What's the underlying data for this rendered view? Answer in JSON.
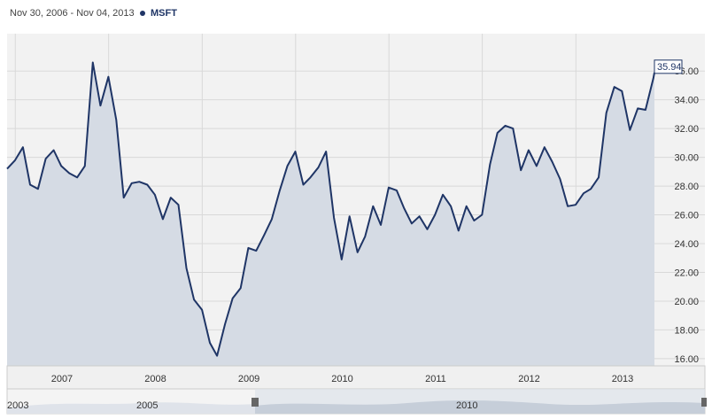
{
  "header": {
    "date_range": "Nov 30, 2006 - Nov 04, 2013",
    "ticker": "MSFT"
  },
  "colors": {
    "line": "#1f3566",
    "area": "#d5dbe4",
    "plot_bg": "#f2f2f2",
    "grid": "#d9d9d9"
  },
  "last_value_label": "35.94",
  "navigator": {
    "labels": [
      "2003",
      "2005",
      "2010"
    ]
  },
  "chart_data": {
    "type": "area",
    "title": "",
    "xlabel": "",
    "ylabel": "",
    "ylim": [
      15.5,
      38.6
    ],
    "yticks": [
      16,
      18,
      20,
      22,
      24,
      26,
      28,
      30,
      32,
      34,
      36
    ],
    "ytick_labels": [
      "16.00",
      "18.00",
      "20.00",
      "22.00",
      "24.00",
      "26.00",
      "28.00",
      "30.00",
      "32.00",
      "34.00",
      "36.00"
    ],
    "years": [
      "2007",
      "2008",
      "2009",
      "2010",
      "2011",
      "2012",
      "2013"
    ],
    "grid": true,
    "x": [
      "2006-11-30",
      "2006-12-31",
      "2007-01-31",
      "2007-02-28",
      "2007-03-31",
      "2007-04-30",
      "2007-05-31",
      "2007-06-30",
      "2007-07-31",
      "2007-08-31",
      "2007-09-30",
      "2007-10-31",
      "2007-11-30",
      "2007-12-31",
      "2008-01-31",
      "2008-02-29",
      "2008-03-31",
      "2008-04-30",
      "2008-05-31",
      "2008-06-30",
      "2008-07-31",
      "2008-08-31",
      "2008-09-30",
      "2008-10-31",
      "2008-11-30",
      "2008-12-31",
      "2009-01-31",
      "2009-02-28",
      "2009-03-31",
      "2009-04-30",
      "2009-05-31",
      "2009-06-30",
      "2009-07-31",
      "2009-08-31",
      "2009-09-30",
      "2009-10-31",
      "2009-11-30",
      "2009-12-31",
      "2010-01-31",
      "2010-02-28",
      "2010-03-31",
      "2010-04-30",
      "2010-05-31",
      "2010-06-30",
      "2010-07-31",
      "2010-08-31",
      "2010-09-30",
      "2010-10-31",
      "2010-11-30",
      "2010-12-31",
      "2011-01-31",
      "2011-02-28",
      "2011-03-31",
      "2011-04-30",
      "2011-05-31",
      "2011-06-30",
      "2011-07-31",
      "2011-08-31",
      "2011-09-30",
      "2011-10-31",
      "2011-11-30",
      "2011-12-31",
      "2012-01-31",
      "2012-02-29",
      "2012-03-31",
      "2012-04-30",
      "2012-05-31",
      "2012-06-30",
      "2012-07-31",
      "2012-08-31",
      "2012-09-30",
      "2012-10-31",
      "2012-11-30",
      "2012-12-31",
      "2013-01-31",
      "2013-02-28",
      "2013-03-31",
      "2013-04-30",
      "2013-05-31",
      "2013-06-30",
      "2013-07-31",
      "2013-08-31",
      "2013-09-30",
      "2013-10-31",
      "2013-11-04"
    ],
    "series": [
      {
        "name": "MSFT",
        "values": [
          29.2,
          29.8,
          30.7,
          28.1,
          27.8,
          29.9,
          30.5,
          29.4,
          28.9,
          28.6,
          29.4,
          36.6,
          33.6,
          35.6,
          32.6,
          27.2,
          28.2,
          28.3,
          28.1,
          27.4,
          25.7,
          27.2,
          26.7,
          22.3,
          20.1,
          19.4,
          17.1,
          16.2,
          18.4,
          20.2,
          20.9,
          23.7,
          23.5,
          24.6,
          25.7,
          27.7,
          29.4,
          30.4,
          28.1,
          28.6,
          29.3,
          30.4,
          25.8,
          22.9,
          25.9,
          23.4,
          24.5,
          26.6,
          25.3,
          27.9,
          27.7,
          26.5,
          25.4,
          25.9,
          25.0,
          26.0,
          27.4,
          26.6,
          24.9,
          26.6,
          25.6,
          26.0,
          29.5,
          31.7,
          32.2,
          32.0,
          29.1,
          30.5,
          29.4,
          30.7,
          29.7,
          28.5,
          26.6,
          26.7,
          27.5,
          27.8,
          28.6,
          33.1,
          34.9,
          34.6,
          31.9,
          33.4,
          33.3,
          35.5,
          35.9
        ]
      }
    ]
  }
}
